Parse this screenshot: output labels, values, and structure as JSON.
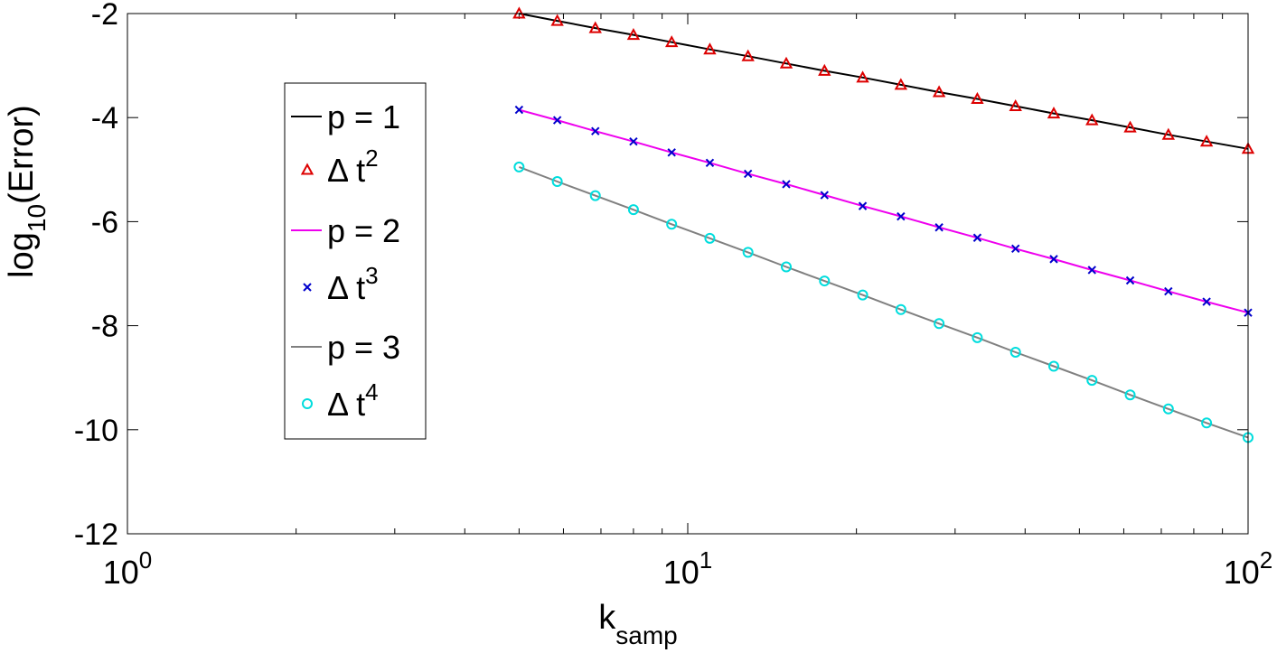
{
  "chart_data": {
    "type": "line",
    "xscale": "log",
    "xlim": [
      1,
      100
    ],
    "ylim": [
      -12,
      -2
    ],
    "x_ticks": [
      {
        "value": 1,
        "base": "10",
        "exp": "0"
      },
      {
        "value": 10,
        "base": "10",
        "exp": "1"
      },
      {
        "value": 100,
        "base": "10",
        "exp": "2"
      }
    ],
    "y_ticks": [
      -2,
      -4,
      -6,
      -8,
      -10,
      -12
    ],
    "y_tick_labels": [
      "-2",
      "-4",
      "-6",
      "-8",
      "-10",
      "-12"
    ],
    "xlabel": {
      "main": "k",
      "sub": "samp"
    },
    "ylabel": {
      "main": "log",
      "sub": "10",
      "rest": "(Error)"
    },
    "grid": false,
    "legend_position": "left-center",
    "x": [
      5,
      5.85,
      6.84,
      8,
      9.36,
      10.95,
      12.81,
      14.99,
      17.54,
      20.52,
      24.01,
      28.09,
      32.87,
      38.46,
      45,
      52.65,
      61.6,
      72.07,
      84.33,
      100
    ],
    "series": [
      {
        "name": "p = 1",
        "kind": "line",
        "color": "#000000",
        "values": [
          -2.0,
          -2.14,
          -2.28,
          -2.41,
          -2.55,
          -2.69,
          -2.82,
          -2.96,
          -3.1,
          -3.23,
          -3.37,
          -3.51,
          -3.64,
          -3.78,
          -3.92,
          -4.05,
          -4.19,
          -4.33,
          -4.46,
          -4.6
        ]
      },
      {
        "name": "Δ t",
        "sup": "2",
        "kind": "marker",
        "marker": "triangle",
        "color": "#dd0000",
        "values": [
          -2.0,
          -2.14,
          -2.28,
          -2.41,
          -2.55,
          -2.69,
          -2.82,
          -2.96,
          -3.1,
          -3.23,
          -3.37,
          -3.51,
          -3.64,
          -3.78,
          -3.92,
          -4.05,
          -4.19,
          -4.33,
          -4.46,
          -4.6
        ]
      },
      {
        "name": "p = 2",
        "kind": "line",
        "color": "#ee00ee",
        "values": [
          -3.85,
          -4.05,
          -4.26,
          -4.46,
          -4.67,
          -4.87,
          -5.08,
          -5.28,
          -5.49,
          -5.7,
          -5.9,
          -6.11,
          -6.31,
          -6.52,
          -6.72,
          -6.93,
          -7.13,
          -7.34,
          -7.54,
          -7.75
        ]
      },
      {
        "name": "Δ t",
        "sup": "3",
        "kind": "marker",
        "marker": "x",
        "color": "#0000cc",
        "values": [
          -3.85,
          -4.05,
          -4.26,
          -4.46,
          -4.67,
          -4.87,
          -5.08,
          -5.28,
          -5.49,
          -5.7,
          -5.9,
          -6.11,
          -6.31,
          -6.52,
          -6.72,
          -6.93,
          -7.13,
          -7.34,
          -7.54,
          -7.75
        ]
      },
      {
        "name": "p = 3",
        "kind": "line",
        "color": "#808080",
        "values": [
          -4.95,
          -5.23,
          -5.5,
          -5.77,
          -6.05,
          -6.32,
          -6.59,
          -6.87,
          -7.14,
          -7.41,
          -7.69,
          -7.96,
          -8.23,
          -8.51,
          -8.78,
          -9.05,
          -9.33,
          -9.6,
          -9.87,
          -10.15
        ]
      },
      {
        "name": "Δ t",
        "sup": "4",
        "kind": "marker",
        "marker": "circle",
        "color": "#00dddd",
        "values": [
          -4.95,
          -5.23,
          -5.5,
          -5.77,
          -6.05,
          -6.32,
          -6.59,
          -6.87,
          -7.14,
          -7.41,
          -7.69,
          -7.96,
          -8.23,
          -8.51,
          -8.78,
          -9.05,
          -9.33,
          -9.6,
          -9.87,
          -10.15
        ]
      }
    ]
  }
}
